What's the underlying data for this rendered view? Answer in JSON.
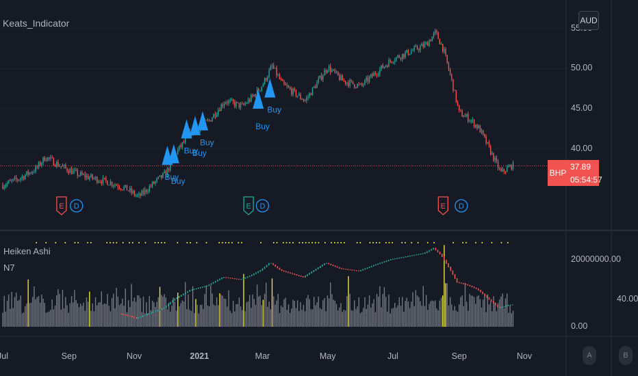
{
  "indicator_title": "Keats_Indicator",
  "lower_pane": {
    "title": "Heiken Ashi",
    "subtitle": "N7"
  },
  "symbol": "BHP",
  "currency": "AUD",
  "last_price": "37.89",
  "countdown": "05:54:57",
  "side_value": "40.00",
  "corner_buttons": [
    "A",
    "B"
  ],
  "event_markers": [
    {
      "type": "earnings",
      "label": "E",
      "date": "2020-08-25"
    },
    {
      "type": "dividend",
      "label": "D",
      "date": "2020-09-08"
    },
    {
      "type": "earnings",
      "label": "E",
      "date": "2021-02-16"
    },
    {
      "type": "dividend",
      "label": "D",
      "date": "2021-03-01"
    },
    {
      "type": "earnings",
      "label": "E",
      "date": "2021-08-17"
    },
    {
      "type": "dividend",
      "label": "D",
      "date": "2021-09-03"
    }
  ],
  "colors": {
    "background": "#161a25",
    "up": "#26a69a",
    "down": "#ef5350",
    "signal": "#2196f3",
    "volume": "#9598a1",
    "highlight_volume": "#e8e33b",
    "price_line": "#ef5350"
  },
  "chart_data": [
    {
      "type": "line",
      "title": "Keats_Indicator",
      "symbol": "BHP",
      "currency": "AUD",
      "y_ticks": [
        "55.00",
        "50.00",
        "45.00",
        "40.00"
      ],
      "x_ticks": [
        "Jul",
        "Sep",
        "Nov",
        "2021",
        "Mar",
        "May",
        "Jul",
        "Sep",
        "Nov"
      ],
      "ylim": [
        33,
        56
      ],
      "last_price": 37.89,
      "series": [
        {
          "x": [
            "2020-07-01",
            "2020-07-15",
            "2020-08-01",
            "2020-08-10",
            "2020-08-25",
            "2020-09-10",
            "2020-09-25",
            "2020-10-10",
            "2020-10-25",
            "2020-11-05",
            "2020-11-20",
            "2020-12-01",
            "2020-12-10",
            "2020-12-25",
            "2021-01-10",
            "2021-01-25",
            "2021-02-10",
            "2021-02-20",
            "2021-03-01",
            "2021-03-10",
            "2021-03-20",
            "2021-04-10",
            "2021-05-01",
            "2021-05-15",
            "2021-06-01",
            "2021-06-15",
            "2021-07-01",
            "2021-07-15",
            "2021-08-01",
            "2021-08-10",
            "2021-08-17",
            "2021-08-25",
            "2021-09-01",
            "2021-09-10",
            "2021-09-20",
            "2021-10-01",
            "2021-10-10",
            "2021-10-20"
          ],
          "values": [
            35.5,
            36.2,
            37.5,
            39.0,
            37.8,
            36.8,
            36.3,
            35.8,
            35.0,
            34.0,
            35.8,
            37.0,
            39.5,
            42.2,
            43.5,
            46.0,
            45.3,
            46.5,
            48.0,
            50.3,
            48.0,
            46.0,
            50.2,
            48.5,
            47.8,
            49.5,
            51.2,
            52.0,
            53.0,
            54.5,
            52.5,
            48.5,
            44.5,
            43.8,
            42.5,
            39.5,
            37.0,
            37.9
          ]
        }
      ]
    },
    {
      "type": "bar",
      "title": "Heiken Ashi",
      "subtitle": "N7",
      "y_ticks": [
        "20000000.00",
        "0.00"
      ],
      "ylim": [
        0,
        25000000
      ]
    }
  ],
  "signals": [
    {
      "label": "Buy",
      "date": "2020-12-02",
      "price": 39.2
    },
    {
      "label": "Buy",
      "date": "2020-12-08",
      "price": 39.4
    },
    {
      "label": "Buy",
      "date": "2020-12-20",
      "price": 42.5
    },
    {
      "label": "Buy",
      "date": "2020-12-28",
      "price": 42.9
    },
    {
      "label": "Buy",
      "date": "2021-01-04",
      "price": 43.5
    },
    {
      "label": "Buy",
      "date": "2021-02-25",
      "price": 46.2
    },
    {
      "label": "Buy",
      "date": "2021-03-08",
      "price": 47.6
    }
  ]
}
